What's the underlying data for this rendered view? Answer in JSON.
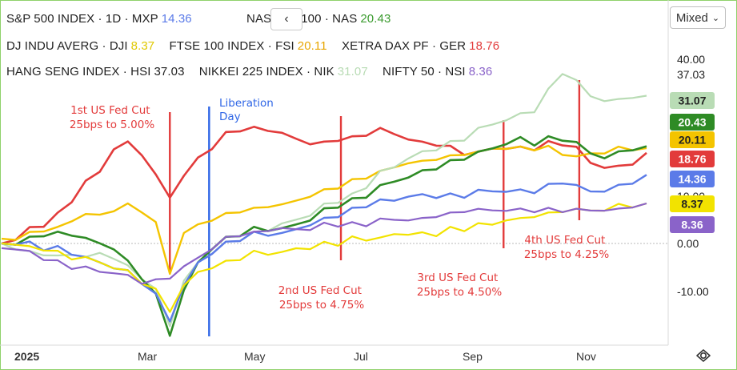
{
  "legend": {
    "row1": [
      {
        "name": "S&P 500 INDEX · 1D · MXP",
        "value": "14.36",
        "color": "#5b7be8"
      },
      {
        "name": "NASDAQ 100 · NAS",
        "value": "20.43",
        "color": "#3b9b2f"
      }
    ],
    "row2": [
      {
        "name": "DJ INDU AVERG · DJI",
        "value": "8.37",
        "color": "#e0c800"
      },
      {
        "name": "FTSE 100 INDEX · FSI",
        "value": "20.11",
        "color": "#e8a600"
      },
      {
        "name": "XETRA DAX PF · GER",
        "value": "18.76",
        "color": "#e23b3b"
      }
    ],
    "row3": [
      {
        "name": "HANG SENG INDEX · HSI",
        "value": "37.03",
        "color": "#222222"
      },
      {
        "name": "NIKKEI 225 INDEX · NIK",
        "value": "31.07",
        "color": "#b9dcb5"
      },
      {
        "name": "NIFTY 50 · NSI",
        "value": "8.36",
        "color": "#8a63c9"
      }
    ]
  },
  "toolbar": {
    "back_label": "‹",
    "scale_mode": "Mixed"
  },
  "chart_data": {
    "type": "line",
    "title": "",
    "ylim": [
      -18,
      58
    ],
    "y_ticks": [
      "40.00",
      "37.03",
      "10.00",
      "0.00",
      "-10.00"
    ],
    "x_tick_labels": [
      "2025",
      "Mar",
      "May",
      "Jul",
      "Sep",
      "Nov"
    ],
    "last_value_badges": [
      {
        "label": "31.07",
        "value": 31.07,
        "color": "#b9dcb5",
        "text_color": "#222222"
      },
      {
        "label": "20.43",
        "value": 20.43,
        "color": "#2e8b25",
        "text_color": "#ffffff"
      },
      {
        "label": "20.11",
        "value": 20.11,
        "color": "#f4c400",
        "text_color": "#222222"
      },
      {
        "label": "18.76",
        "value": 18.76,
        "color": "#e23b3b",
        "text_color": "#ffffff"
      },
      {
        "label": "14.36",
        "value": 14.36,
        "color": "#5b7be8",
        "text_color": "#ffffff"
      },
      {
        "label": "8.37",
        "value": 8.37,
        "color": "#f2e300",
        "text_color": "#222222"
      },
      {
        "label": "8.36",
        "value": 8.36,
        "color": "#8a63c9",
        "text_color": "#ffffff"
      }
    ],
    "x": [
      0,
      5,
      10,
      15,
      20,
      25,
      30,
      35,
      40,
      45,
      50,
      55,
      60,
      65,
      70,
      75,
      80,
      85,
      90,
      95,
      100,
      105,
      110,
      115,
      120,
      125,
      130,
      135,
      140,
      145,
      150,
      155,
      160,
      165,
      170,
      175,
      180,
      185,
      190,
      195,
      200,
      205,
      210,
      215,
      220,
      225,
      230
    ],
    "series": [
      {
        "name": "XETRA DAX PF · GER",
        "color": "#e23b3b",
        "width": 2.6,
        "values": [
          0,
          1,
          3,
          4,
          6,
          9,
          13,
          15,
          20,
          21,
          19,
          14,
          10,
          14,
          18,
          20,
          23,
          24,
          24,
          24,
          23,
          22,
          21,
          21,
          22,
          22,
          23,
          24,
          23,
          22,
          21,
          21,
          20,
          19,
          19,
          20,
          20,
          20,
          20,
          21,
          21,
          20,
          17,
          16,
          16,
          17,
          19
        ]
      },
      {
        "name": "FTSE 100 INDEX · FSI",
        "color": "#f4c400",
        "width": 2.4,
        "values": [
          1,
          1,
          2,
          3,
          3,
          5,
          6,
          6,
          7,
          8,
          7,
          4,
          -6,
          2,
          4,
          5,
          6,
          7,
          7,
          8,
          8,
          9,
          10,
          11,
          12,
          13,
          14,
          15,
          16,
          17,
          17,
          18,
          18,
          19,
          19,
          20,
          20,
          20,
          20,
          20,
          19,
          18,
          19,
          19,
          20,
          20,
          20
        ]
      },
      {
        "name": "NIKKEI 225 INDEX · NIK",
        "color": "#b9dcb5",
        "width": 2.2,
        "values": [
          0,
          -1,
          -2,
          -2,
          -3,
          -2,
          -3,
          -2,
          -3,
          -5,
          -7,
          -10,
          -17,
          -8,
          -4,
          -2,
          0,
          1,
          2,
          3,
          4,
          5,
          6,
          8,
          9,
          10,
          12,
          15,
          16,
          18,
          19,
          20,
          21,
          22,
          24,
          25,
          26,
          27,
          28,
          32,
          36,
          34,
          31,
          30,
          30,
          31,
          31
        ]
      },
      {
        "name": "NASDAQ 100 · NAS",
        "color": "#2e8b25",
        "width": 2.6,
        "values": [
          0,
          0,
          1,
          2,
          2,
          2,
          1,
          0,
          -1,
          -4,
          -7,
          -11,
          -19,
          -10,
          -4,
          -1,
          1,
          2,
          3,
          3,
          3,
          4,
          5,
          7,
          8,
          9,
          10,
          12,
          13,
          14,
          15,
          16,
          17,
          18,
          19,
          20,
          21,
          22,
          21,
          22,
          22,
          21,
          19,
          18,
          19,
          20,
          20.4
        ]
      },
      {
        "name": "S&P 500 INDEX · 1D · MXP",
        "color": "#5b7be8",
        "width": 2.4,
        "values": [
          0,
          0,
          0,
          -1,
          -1,
          -2,
          -3,
          -4,
          -5,
          -6,
          -8,
          -11,
          -16,
          -9,
          -4,
          -2,
          0,
          1,
          2,
          2,
          2,
          3,
          4,
          5,
          6,
          7,
          8,
          9,
          9,
          10,
          10,
          10,
          10,
          10,
          11,
          11,
          11,
          11,
          11,
          12,
          13,
          12,
          11,
          11,
          12,
          13,
          14.4
        ]
      },
      {
        "name": "DJ INDU AVERG · DJI",
        "color": "#f2e300",
        "width": 2.2,
        "values": [
          0,
          0,
          -1,
          -1,
          -2,
          -3,
          -3,
          -4,
          -5,
          -6,
          -8,
          -10,
          -14,
          -9,
          -6,
          -5,
          -4,
          -3,
          -2,
          -2,
          -2,
          -1,
          -1,
          0,
          0,
          1,
          1,
          1,
          2,
          2,
          2,
          2,
          3,
          3,
          4,
          4,
          5,
          5,
          6,
          6,
          7,
          7,
          7,
          7,
          8,
          8,
          8.4
        ]
      },
      {
        "name": "NIFTY 50 · NSI",
        "color": "#8a63c9",
        "width": 2.2,
        "values": [
          -1,
          -1,
          -2,
          -3,
          -4,
          -5,
          -5,
          -6,
          -6,
          -7,
          -8,
          -8,
          -7,
          -5,
          -3,
          -1,
          1,
          2,
          2,
          3,
          3,
          3,
          3,
          4,
          4,
          4,
          4,
          5,
          5,
          5,
          5,
          6,
          6,
          7,
          7,
          7,
          7,
          7,
          7,
          7,
          7,
          7,
          7,
          7,
          7,
          8,
          8.4
        ]
      }
    ],
    "annotations": [
      {
        "lines": [
          "1st US Fed Cut",
          "25bps to 5.00%"
        ],
        "color": "red"
      },
      {
        "lines": [
          "Liberation",
          "Day"
        ],
        "color": "blue"
      },
      {
        "lines": [
          "2nd US Fed Cut",
          "25bps to 4.75%"
        ],
        "color": "red"
      },
      {
        "lines": [
          "3rd US Fed Cut",
          "25bps to 4.50%"
        ],
        "color": "red"
      },
      {
        "lines": [
          "4th US Fed Cut",
          "25bps to 4.25%"
        ],
        "color": "red"
      }
    ]
  }
}
